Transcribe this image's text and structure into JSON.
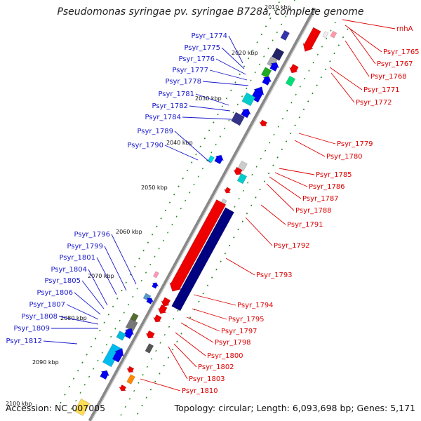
{
  "title": "Pseudomonas syringae pv. syringae B728a, complete genome",
  "footer": {
    "accession": "Accession: NC_007005",
    "summary": "Topology: circular; Length: 6,093,698 bp; Genes: 5,171"
  },
  "colors": {
    "forward_label": "#1a1acc",
    "reverse_label": "#dd0000",
    "backbone": "#888888",
    "tick": "#228822"
  },
  "ruler": {
    "labels": [
      "2010 kbp",
      "2020 kbp",
      "2030 kbp",
      "2040 kbp",
      "2050 kbp",
      "2060 kbp",
      "2070 kbp",
      "2080 kbp",
      "2090 kbp",
      "2100 kbp"
    ]
  },
  "forward_genes": [
    "Psyr_1774",
    "Psyr_1775",
    "Psyr_1776",
    "Psyr_1777",
    "Psyr_1778",
    "Psyr_1781",
    "Psyr_1782",
    "Psyr_1784",
    "Psyr_1789",
    "Psyr_1790",
    "Psyr_1796",
    "Psyr_1799",
    "Psyr_1801",
    "Psyr_1804",
    "Psyr_1805",
    "Psyr_1806",
    "Psyr_1807",
    "Psyr_1808",
    "Psyr_1809",
    "Psyr_1812"
  ],
  "reverse_genes": [
    "rnhA",
    "Psyr_1765",
    "Psyr_1767",
    "Psyr_1768",
    "Psyr_1771",
    "Psyr_1772",
    "Psyr_1779",
    "Psyr_1780",
    "Psyr_1785",
    "Psyr_1786",
    "Psyr_1787",
    "Psyr_1788",
    "Psyr_1791",
    "Psyr_1792",
    "Psyr_1793",
    "Psyr_1794",
    "Psyr_1795",
    "Psyr_1797",
    "Psyr_1798",
    "Psyr_1800",
    "Psyr_1802",
    "Psyr_1803",
    "Psyr_1810"
  ]
}
